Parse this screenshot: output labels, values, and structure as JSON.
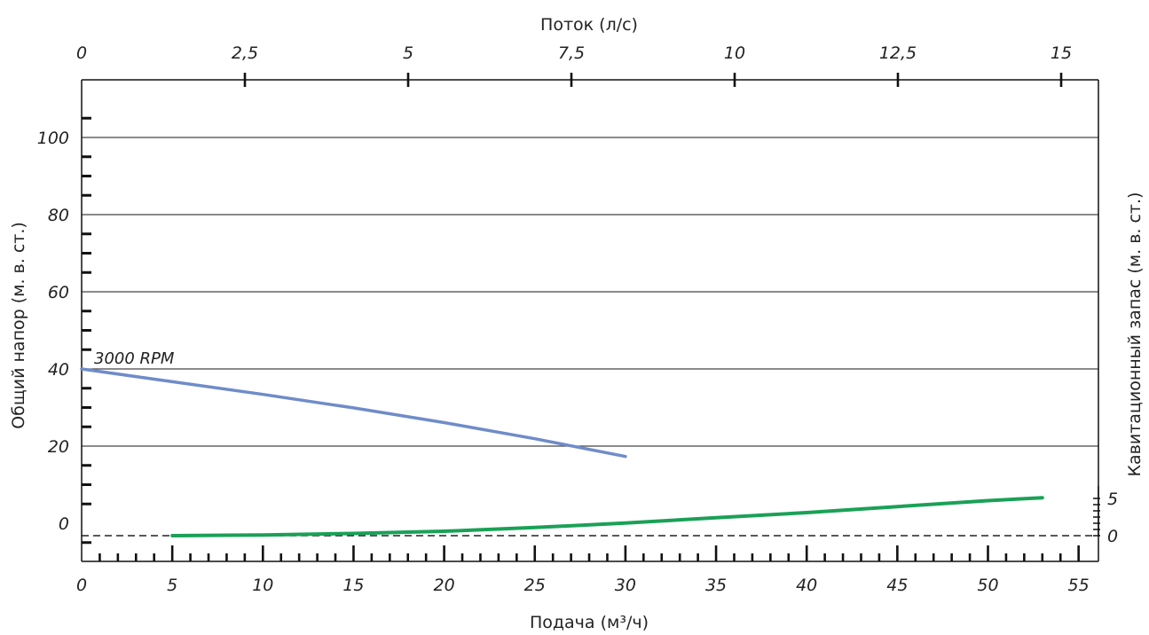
{
  "chart_data": {
    "type": "line",
    "title": "",
    "x_bottom": {
      "label": "Подача (м³/ч)",
      "range": [
        0,
        56
      ],
      "ticks": [
        0,
        5,
        10,
        15,
        20,
        25,
        30,
        35,
        40,
        45,
        50,
        55
      ],
      "tick_labels": [
        "0",
        "5",
        "10",
        "15",
        "20",
        "25",
        "30",
        "35",
        "40",
        "45",
        "50",
        "55"
      ]
    },
    "x_top": {
      "label": "Поток (л/с)",
      "range": [
        0,
        15.56
      ],
      "ticks": [
        0,
        2.5,
        5,
        7.5,
        10,
        12.5,
        15
      ],
      "tick_labels": [
        "0",
        "2,5",
        "5",
        "7,5",
        "10",
        "12,5",
        "15"
      ]
    },
    "y_left": {
      "label": "Общий напор (м. в. ст.)",
      "range": [
        -10,
        110
      ],
      "ticks": [
        0,
        20,
        40,
        60,
        80,
        100
      ],
      "tick_labels": [
        "0",
        "20",
        "40",
        "60",
        "80",
        "100"
      ],
      "gridlines": [
        0,
        20,
        40,
        60,
        80,
        100
      ]
    },
    "y_right": {
      "label": "Кавитационный запас (м. в. ст.)",
      "ticks": [
        0,
        5
      ],
      "tick_labels": [
        "0",
        "5"
      ]
    },
    "annotations": [
      {
        "text": "3000 RPM"
      }
    ],
    "series": [
      {
        "axis": "left",
        "color": "#6f8cc9",
        "x": [
          0,
          5,
          10,
          15,
          20,
          25,
          30
        ],
        "y": [
          40,
          36.7,
          33.4,
          29.9,
          26.1,
          21.9,
          17.3
        ]
      },
      {
        "axis": "right",
        "color": "#1aa157",
        "x": [
          5,
          10,
          15,
          20,
          25,
          30,
          35,
          40,
          45,
          50,
          53
        ],
        "y": [
          0,
          0.1,
          0.3,
          0.6,
          1.1,
          1.7,
          2.4,
          3.1,
          3.9,
          4.7,
          5.1
        ]
      }
    ]
  }
}
